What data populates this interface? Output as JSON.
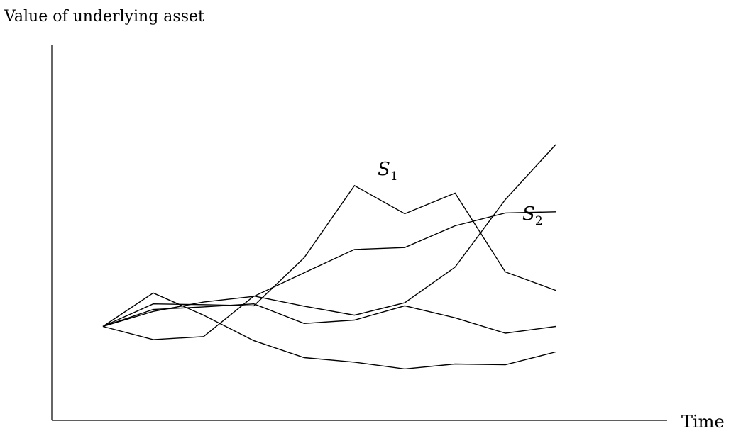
{
  "axes": {
    "ylabel": "Value of underlying asset",
    "xlabel": "Time"
  },
  "chart_data": {
    "type": "line",
    "x": [
      0,
      1,
      2,
      3,
      4,
      5,
      6,
      7,
      8,
      9
    ],
    "ylim": [
      0,
      100
    ],
    "series": [
      {
        "name": "S1",
        "label_main": "S",
        "label_sub": "1",
        "values": [
          25.0,
          31.0,
          30.8,
          30.5,
          43.3,
          62.5,
          55.0,
          60.5,
          39.5,
          34.6
        ]
      },
      {
        "name": "S2",
        "label_main": "S",
        "label_sub": "2",
        "values": [
          25.0,
          29.0,
          31.5,
          33.0,
          39.3,
          45.5,
          46.0,
          51.8,
          55.2,
          55.5
        ]
      },
      {
        "name": "",
        "label_main": "",
        "label_sub": "",
        "values": [
          25.0,
          21.5,
          22.3,
          33.1,
          30.4,
          28.0,
          31.3,
          40.8,
          58.8,
          73.4
        ]
      },
      {
        "name": "",
        "label_main": "",
        "label_sub": "",
        "values": [
          25.0,
          33.9,
          28.0,
          21.2,
          16.7,
          15.5,
          13.7,
          15.0,
          14.8,
          18.2
        ]
      },
      {
        "name": "",
        "label_main": "",
        "label_sub": "",
        "values": [
          25.0,
          29.5,
          30.2,
          31.0,
          25.8,
          26.7,
          30.5,
          27.3,
          23.2,
          25.0
        ]
      }
    ]
  }
}
